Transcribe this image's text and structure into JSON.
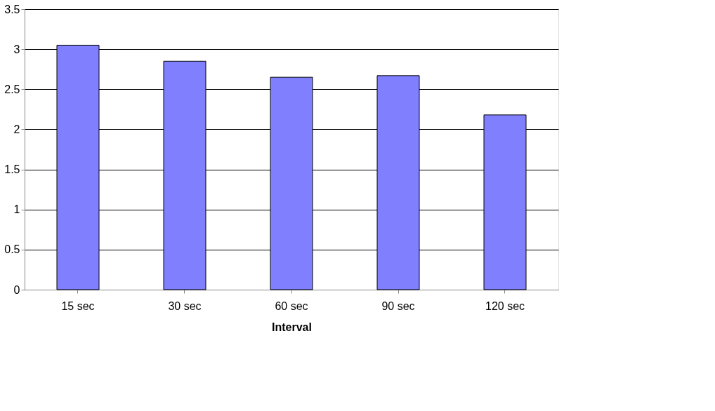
{
  "chart_data": {
    "type": "bar",
    "xlabel": "Interval",
    "categories": [
      "15 sec",
      "30 sec",
      "60 sec",
      "90 sec",
      "120 sec"
    ],
    "series": [
      {
        "color": "#8080ff",
        "values": [
          3.05,
          2.85,
          2.65,
          2.67,
          2.18
        ]
      }
    ],
    "ylim": [
      0,
      3.5
    ],
    "yticks": [
      0,
      0.5,
      1,
      1.5,
      2,
      2.5,
      3,
      3.5
    ],
    "grid": "y"
  }
}
